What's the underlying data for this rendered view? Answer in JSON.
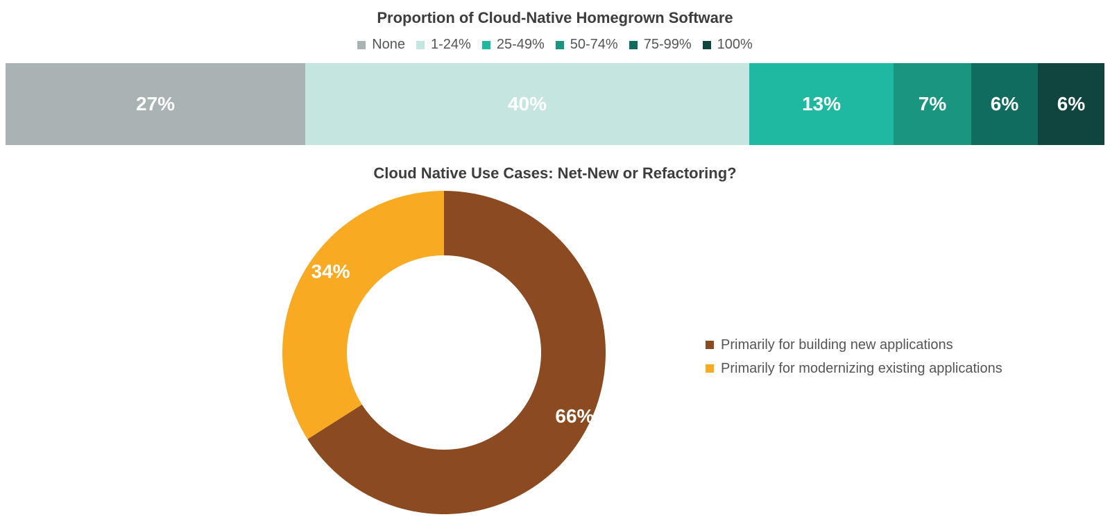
{
  "chart_data": [
    {
      "type": "bar",
      "stacked": true,
      "orientation": "horizontal",
      "title": "Proportion of Cloud-Native Homegrown Software",
      "legend_position": "top",
      "series": [
        {
          "name": "None",
          "value": 27,
          "label": "27%",
          "color": "#aab3b4"
        },
        {
          "name": "1-24%",
          "value": 40,
          "label": "40%",
          "color": "#c5e6e0"
        },
        {
          "name": "25-49%",
          "value": 13,
          "label": "13%",
          "color": "#1fb9a1"
        },
        {
          "name": "50-74%",
          "value": 7,
          "label": "7%",
          "color": "#1a9580"
        },
        {
          "name": "75-99%",
          "value": 6,
          "label": "6%",
          "color": "#106c5e"
        },
        {
          "name": "100%",
          "value": 6,
          "label": "6%",
          "color": "#0f453e"
        }
      ]
    },
    {
      "type": "pie",
      "donut": true,
      "title": "Cloud Native Use Cases: Net-New or Refactoring?",
      "legend_position": "right",
      "slices": [
        {
          "name": "Primarily for building new applications",
          "value": 66,
          "label": "66%",
          "color": "#8b4a1f"
        },
        {
          "name": "Primarily for modernizing existing applications",
          "value": 34,
          "label": "34%",
          "color": "#f8aa22"
        }
      ]
    }
  ]
}
